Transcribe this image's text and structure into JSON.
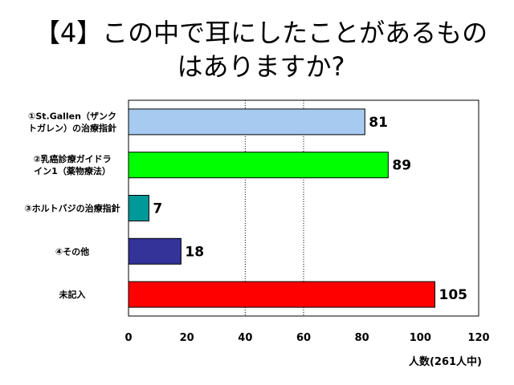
{
  "chart_data": {
    "type": "bar",
    "orientation": "horizontal",
    "title": "【4】この中で耳にしたことがあるものはありますか?",
    "categories": [
      [
        "①St.Gallen（ザンク",
        "トガレン）の治療指針"
      ],
      [
        "②乳癌診療ガイドラ",
        "イン1（薬物療法）"
      ],
      [
        "③ホルトバジの治療指針"
      ],
      [
        "④その他"
      ],
      [
        "未記入"
      ]
    ],
    "values": [
      81,
      89,
      7,
      18,
      105
    ],
    "bar_colors": [
      "#a6caf0",
      "#00ff00",
      "#009999",
      "#333399",
      "#ff0000"
    ],
    "xlabel": "人数(261人中)",
    "xlim": [
      0,
      120
    ],
    "xticks": [
      0,
      20,
      40,
      60,
      80,
      100,
      120
    ],
    "gridlines": [
      40,
      60
    ],
    "grid": "dotted vertical"
  }
}
